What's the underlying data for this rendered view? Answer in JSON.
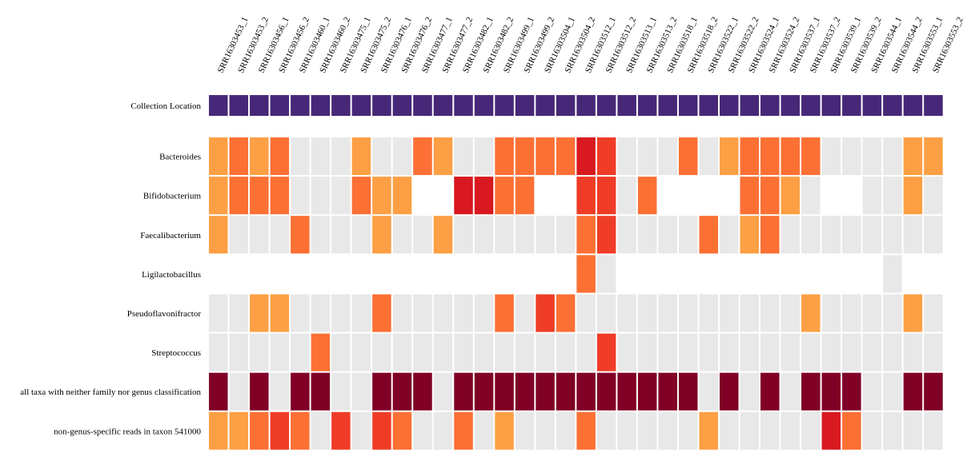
{
  "chart_data": {
    "type": "heatmap",
    "columns": [
      "SRR16303453_1",
      "SRR16303453_2",
      "SRR16303456_1",
      "SRR16303456_2",
      "SRR16303460_1",
      "SRR16303460_2",
      "SRR16303475_1",
      "SRR16303475_2",
      "SRR16303476_1",
      "SRR16303476_2",
      "SRR16303477_1",
      "SRR16303477_2",
      "SRR16303482_1",
      "SRR16303482_2",
      "SRR16303499_1",
      "SRR16303499_2",
      "SRR16303504_1",
      "SRR16303504_2",
      "SRR16303512_1",
      "SRR16303512_2",
      "SRR16303513_1",
      "SRR16303513_2",
      "SRR16303518_1",
      "SRR16303518_2",
      "SRR16303522_1",
      "SRR16303522_2",
      "SRR16303524_1",
      "SRR16303524_2",
      "SRR16303537_1",
      "SRR16303537_2",
      "SRR16303539_1",
      "SRR16303539_2",
      "SRR16303544_1",
      "SRR16303544_2",
      "SRR16303553_1",
      "SRR16303553_2"
    ],
    "metadata_row": {
      "label": "Collection Location",
      "color": "#472878"
    },
    "rows": [
      {
        "label": "Bacteroides",
        "values": [
          2,
          3,
          2,
          3,
          0,
          0,
          0,
          2,
          0,
          0,
          3,
          2,
          0,
          0,
          3,
          3,
          3,
          3,
          5,
          4,
          0,
          0,
          0,
          3,
          0,
          2,
          3,
          3,
          3,
          3,
          0,
          0,
          0,
          0,
          2,
          2
        ]
      },
      {
        "label": "Bifidobacterium",
        "values": [
          2,
          3,
          3,
          3,
          0,
          0,
          0,
          3,
          2,
          2,
          null,
          null,
          5,
          5,
          3,
          3,
          null,
          null,
          4,
          4,
          0,
          3,
          null,
          null,
          null,
          null,
          3,
          3,
          2,
          0,
          null,
          null,
          0,
          0,
          2,
          0
        ]
      },
      {
        "label": "Faecalibacterium",
        "values": [
          2,
          0,
          0,
          0,
          3,
          0,
          0,
          0,
          2,
          0,
          0,
          2,
          0,
          0,
          0,
          0,
          0,
          0,
          3,
          4,
          0,
          0,
          0,
          0,
          3,
          0,
          2,
          3,
          0,
          0,
          0,
          0,
          0,
          0,
          0,
          0
        ]
      },
      {
        "label": "Ligilactobacillus",
        "values": [
          null,
          null,
          null,
          null,
          null,
          null,
          null,
          null,
          null,
          null,
          null,
          null,
          null,
          null,
          null,
          null,
          null,
          null,
          3,
          0,
          null,
          null,
          null,
          null,
          null,
          null,
          null,
          null,
          null,
          null,
          null,
          null,
          null,
          0,
          null,
          null
        ]
      },
      {
        "label": "Pseudoflavonifractor",
        "values": [
          0,
          0,
          2,
          2,
          0,
          0,
          0,
          0,
          3,
          0,
          0,
          0,
          0,
          0,
          3,
          0,
          4,
          3,
          0,
          0,
          0,
          0,
          0,
          0,
          0,
          0,
          0,
          0,
          0,
          2,
          0,
          0,
          0,
          0,
          2,
          0
        ]
      },
      {
        "label": "Streptococcus",
        "values": [
          0,
          0,
          0,
          0,
          0,
          3,
          0,
          0,
          0,
          0,
          0,
          0,
          0,
          0,
          0,
          0,
          0,
          0,
          0,
          4,
          0,
          0,
          0,
          0,
          0,
          0,
          0,
          0,
          0,
          0,
          0,
          0,
          0,
          0,
          0,
          0
        ]
      },
      {
        "label": "all taxa with neither family nor genus classification",
        "values": [
          6,
          0,
          6,
          0,
          6,
          6,
          0,
          0,
          6,
          6,
          6,
          0,
          6,
          6,
          6,
          6,
          6,
          6,
          6,
          6,
          6,
          6,
          6,
          6,
          0,
          6,
          0,
          6,
          0,
          6,
          6,
          6,
          0,
          0,
          6,
          6
        ]
      },
      {
        "label": "non-genus-specific reads in taxon 541000",
        "values": [
          2,
          2,
          3,
          4,
          3,
          0,
          4,
          0,
          4,
          3,
          0,
          0,
          3,
          0,
          2,
          0,
          0,
          0,
          3,
          0,
          0,
          0,
          0,
          0,
          2,
          0,
          0,
          0,
          0,
          0,
          5,
          3,
          0,
          0,
          0,
          0
        ]
      }
    ],
    "color_scale": {
      "0": "#e8e8e8",
      "1": "#fed976",
      "2": "#fd9f44",
      "3": "#fc7034",
      "4": "#ef3c26",
      "5": "#d8191f",
      "6": "#800026"
    },
    "missing_color": "#ffffff",
    "legend": "none"
  }
}
